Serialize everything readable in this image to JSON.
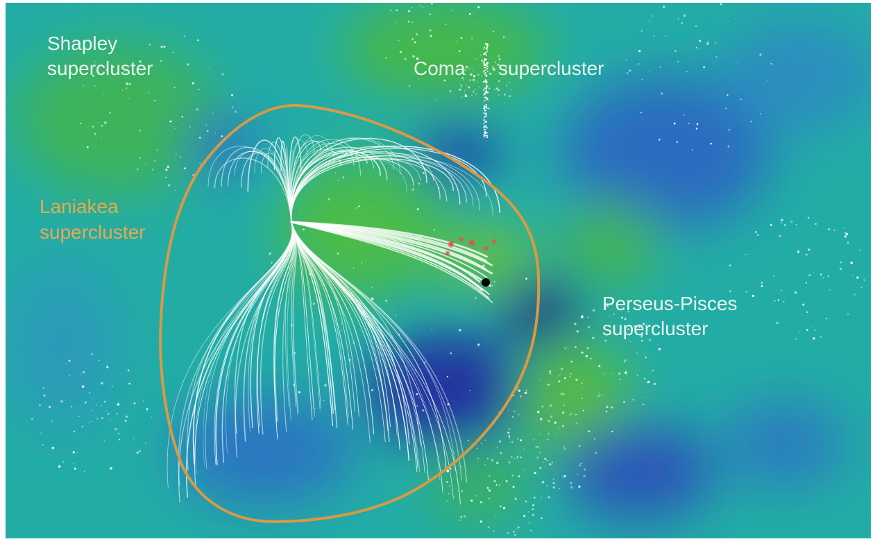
{
  "labels": [
    {
      "lines": [
        "Shapley",
        "supercluster"
      ]
    },
    {
      "lines": [
        "Coma",
        "supercluster"
      ]
    },
    {
      "lines": [
        "Laniakea",
        "supercluster"
      ]
    },
    {
      "lines": [
        "Perseus-Pisces",
        "supercluster"
      ]
    }
  ]
}
